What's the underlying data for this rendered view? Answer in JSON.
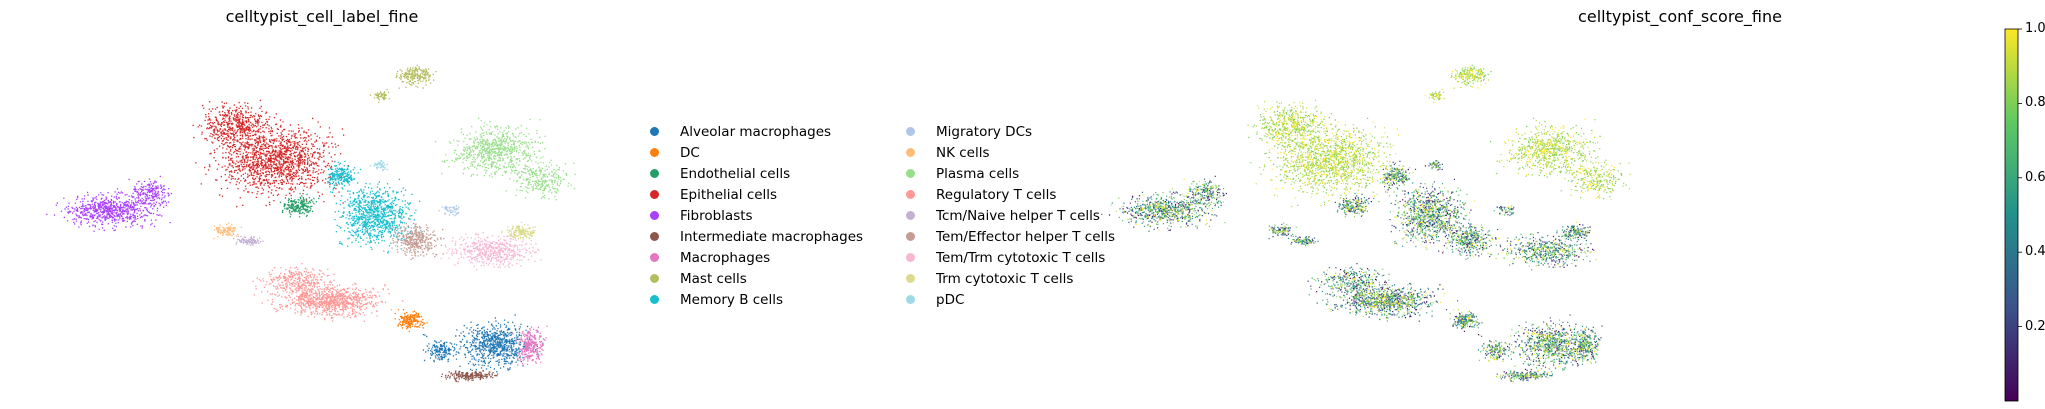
{
  "chart_data": [
    {
      "type": "scatter",
      "title": "celltypist_cell_label_fine",
      "legend_position": "right",
      "axes_visible": false,
      "categories": [
        {
          "label": "Alveolar macrophages",
          "color": "#1f77b4"
        },
        {
          "label": "DC",
          "color": "#ff7f0e"
        },
        {
          "label": "Endothelial cells",
          "color": "#279e68"
        },
        {
          "label": "Epithelial cells",
          "color": "#d62728"
        },
        {
          "label": "Fibroblasts",
          "color": "#aa40fc"
        },
        {
          "label": "Intermediate macrophages",
          "color": "#8c564b"
        },
        {
          "label": "Macrophages",
          "color": "#e377c2"
        },
        {
          "label": "Mast cells",
          "color": "#b5bd61"
        },
        {
          "label": "Memory B cells",
          "color": "#17becf"
        },
        {
          "label": "Migratory DCs",
          "color": "#aec7e8"
        },
        {
          "label": "NK cells",
          "color": "#ffbb78"
        },
        {
          "label": "Plasma cells",
          "color": "#98df8a"
        },
        {
          "label": "Regulatory T cells",
          "color": "#ff9896"
        },
        {
          "label": "Tcm/Naive helper T cells",
          "color": "#c5b0d5"
        },
        {
          "label": "Tem/Effector helper T cells",
          "color": "#c49c94"
        },
        {
          "label": "Tem/Trm cytotoxic T cells",
          "color": "#f7b6d2"
        },
        {
          "label": "Trm cytotoxic T cells",
          "color": "#dbdb8d"
        },
        {
          "label": "pDC",
          "color": "#9edae5"
        }
      ]
    },
    {
      "type": "scatter",
      "title": "celltypist_conf_score_fine",
      "axes_visible": false,
      "colorbar": {
        "range": [
          0.0,
          1.0
        ],
        "ticks": [
          "0.2",
          "0.4",
          "0.6",
          "0.8",
          "1.0"
        ],
        "tick_values": [
          0.2,
          0.4,
          0.6,
          0.8,
          1.0
        ],
        "colormap": [
          "#440154",
          "#3b528b",
          "#21918c",
          "#5ec962",
          "#fde725"
        ]
      }
    }
  ]
}
